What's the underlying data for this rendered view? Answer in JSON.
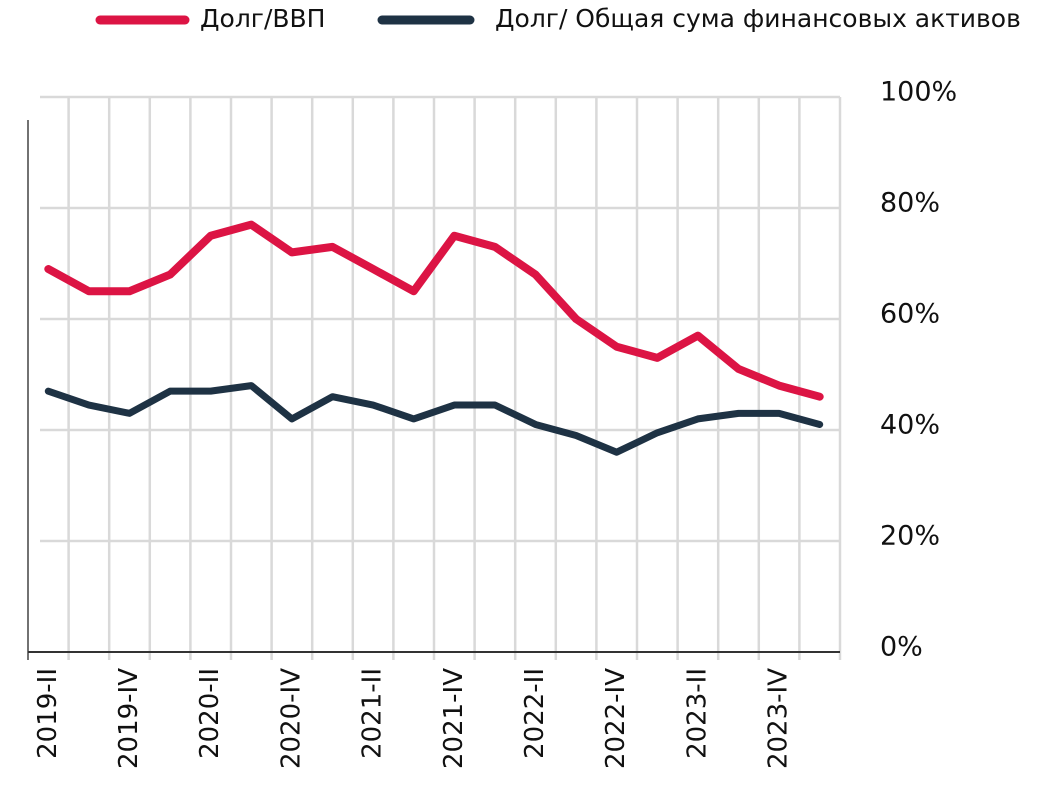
{
  "chart_data": {
    "type": "line",
    "categories": [
      "2019-II",
      null,
      "2019-IV",
      null,
      "2020-II",
      null,
      "2020-IV",
      null,
      "2021-II",
      null,
      "2021-IV",
      null,
      "2022-II",
      null,
      "2022-IV",
      null,
      "2023-II",
      null,
      "2023-IV",
      null
    ],
    "series": [
      {
        "name": "Долг/ВВП",
        "color": "#dc1444",
        "values": [
          69,
          65,
          65,
          68,
          75,
          77,
          72,
          73,
          69,
          65,
          75,
          73,
          68,
          60,
          55,
          53,
          57,
          51,
          48,
          46
        ]
      },
      {
        "name": "Долг/ Общая сума финансовых активов",
        "color": "#1e3244",
        "values": [
          47,
          44.5,
          43,
          47,
          47,
          48,
          42,
          46,
          44.5,
          42,
          44.5,
          44.5,
          41,
          39,
          36,
          39.5,
          42,
          43,
          43,
          41
        ]
      }
    ],
    "ylim": [
      0,
      100
    ],
    "yticks": [
      {
        "value": 0,
        "label": "0%"
      },
      {
        "value": 20,
        "label": "20%"
      },
      {
        "value": 40,
        "label": "40%"
      },
      {
        "value": 60,
        "label": "60%"
      },
      {
        "value": 80,
        "label": "80%"
      },
      {
        "value": 100,
        "label": "100%"
      }
    ],
    "grid": true,
    "legend": "top"
  }
}
